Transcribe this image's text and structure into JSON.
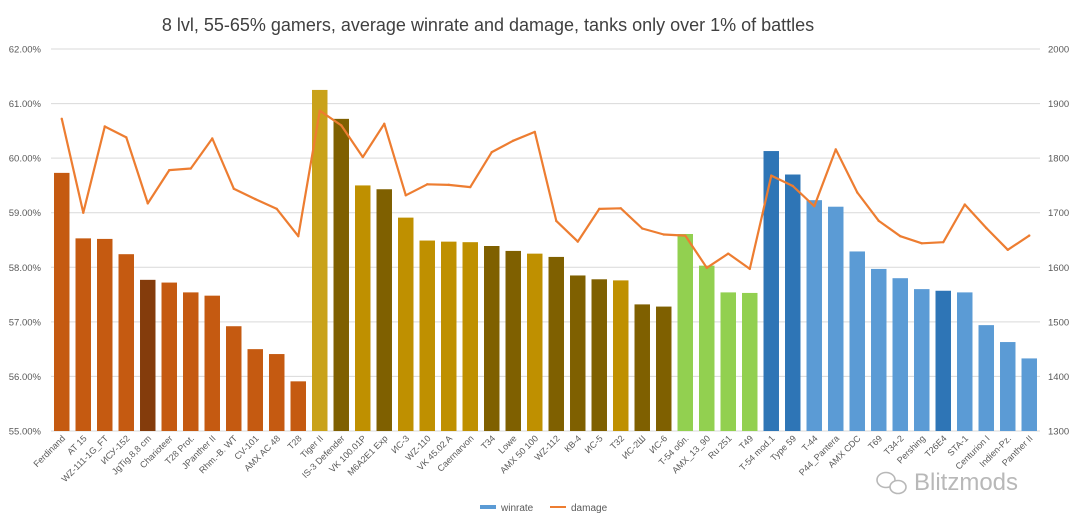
{
  "chart_data": {
    "type": "bar+line",
    "title": "8 lvl, 55-65% gamers, average winrate and damage, tanks only over 1% of battles",
    "xlabel": "",
    "ylabel_left": "",
    "ylabel_right": "",
    "y_left_range": [
      0.55,
      0.62
    ],
    "y_right_range": [
      1300,
      2000
    ],
    "y_left_ticks": [
      "55.00%",
      "56.00%",
      "57.00%",
      "58.00%",
      "59.00%",
      "60.00%",
      "61.00%",
      "62.00%"
    ],
    "y_right_ticks": [
      "1300",
      "1400",
      "1500",
      "1600",
      "1700",
      "1800",
      "1900",
      "2000"
    ],
    "grid": true,
    "legend_position": "bottom",
    "categories": [
      "Ferdinand",
      "AT 15",
      "WZ-111-1G_FT",
      "ИСУ-152",
      "JgTig.8,8 cm",
      "Charioteer",
      "T28 Prot.",
      "JPanther II",
      "Rhm.-B. WT",
      "CV-101",
      "AMX AC 48",
      "T28",
      "Tiger II",
      "IS-3 Defender",
      "VK 100.01P",
      "M6A2E1 Exp",
      "ИС-3",
      "WZ-110",
      "VK 45.02 A",
      "Caernarvon",
      "T34",
      "Lowe",
      "AMX 50 100",
      "WZ-112",
      "КВ-4",
      "ИС-5",
      "T32",
      "ИС-2Ш",
      "ИС-6",
      "T-54 обл.",
      "AMX_13_90",
      "Ru 251",
      "T49",
      "T-54 mod.1",
      "Type 59",
      "T-44",
      "P44_Pantera",
      "AMX CDC",
      "T69",
      "T34-2",
      "Pershing",
      "T26E4",
      "STA-1",
      "Centurion I",
      "Indien-Pz.",
      "Panther II"
    ],
    "series": [
      {
        "name": "winrate",
        "type": "bar",
        "axis": "left",
        "values": [
          59.73,
          58.53,
          58.52,
          58.24,
          57.77,
          57.72,
          57.54,
          57.48,
          56.92,
          56.5,
          56.41,
          55.91,
          61.25,
          60.72,
          59.5,
          59.43,
          58.91,
          58.49,
          58.47,
          58.46,
          58.39,
          58.3,
          58.25,
          58.19,
          57.85,
          57.78,
          57.76,
          57.32,
          57.28,
          58.61,
          58.03,
          57.54,
          57.53,
          60.13,
          59.7,
          59.23,
          59.11,
          58.29,
          57.97,
          57.8,
          57.6,
          57.57,
          57.54,
          56.94,
          56.63,
          56.33
        ],
        "colors": [
          "#c55a11",
          "#c55a11",
          "#c55a11",
          "#c55a11",
          "#843c0c",
          "#c55a11",
          "#c55a11",
          "#c55a11",
          "#c55a11",
          "#c55a11",
          "#c55a11",
          "#c55a11",
          "#c9a21a",
          "#7f6000",
          "#bf9000",
          "#7f6000",
          "#bf9000",
          "#bf9000",
          "#bf9000",
          "#bf9000",
          "#7f6000",
          "#7f6000",
          "#bf9000",
          "#7f6000",
          "#7f6000",
          "#7f6000",
          "#bf9000",
          "#7f6000",
          "#7f6000",
          "#92d050",
          "#92d050",
          "#92d050",
          "#92d050",
          "#2e75b6",
          "#2e75b6",
          "#5b9bd5",
          "#5b9bd5",
          "#5b9bd5",
          "#5b9bd5",
          "#5b9bd5",
          "#5b9bd5",
          "#2e75b6",
          "#5b9bd5",
          "#5b9bd5",
          "#5b9bd5",
          "#5b9bd5"
        ]
      },
      {
        "name": "damage",
        "type": "line",
        "axis": "right",
        "color": "#ed7d31",
        "values": [
          1872,
          1700,
          1858,
          1838,
          1717,
          1778,
          1781,
          1836,
          1744,
          1725,
          1707,
          1657,
          1887,
          1860,
          1802,
          1863,
          1732,
          1752,
          1751,
          1747,
          1811,
          1832,
          1848,
          1685,
          1647,
          1707,
          1708,
          1671,
          1660,
          1658,
          1599,
          1625,
          1597,
          1768,
          1749,
          1712,
          1816,
          1737,
          1685,
          1657,
          1644,
          1646,
          1715,
          1672,
          1632,
          1658
        ]
      }
    ],
    "legend": [
      {
        "label": "winrate",
        "color": "#5b9bd5"
      },
      {
        "label": "damage",
        "color": "#ed7d31"
      }
    ]
  },
  "watermark": {
    "text": "Blitzmods",
    "icon": "wechat-icon"
  }
}
